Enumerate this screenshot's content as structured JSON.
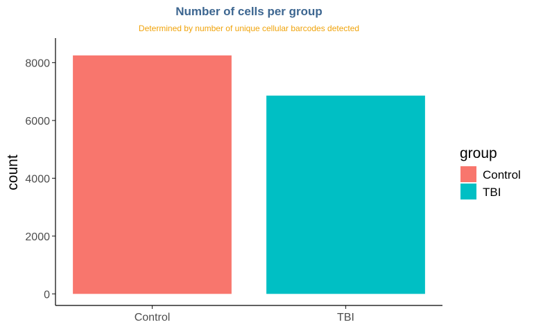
{
  "chart_data": {
    "type": "bar",
    "title": "Number of cells per group",
    "subtitle": "Determined by number of unique cellular barcodes detected",
    "xlabel": "",
    "ylabel": "count",
    "categories": [
      "Control",
      "TBI"
    ],
    "values": [
      8250,
      6860
    ],
    "colors": [
      "#F8766D",
      "#00BFC4"
    ],
    "ylim": [
      -400,
      8850
    ],
    "yticks": [
      0,
      2000,
      4000,
      6000,
      8000
    ],
    "grid": false,
    "legend": {
      "title": "group",
      "position": "right",
      "entries": [
        "Control",
        "TBI"
      ]
    },
    "title_color": "#3d6690",
    "subtitle_color": "#f0a30a"
  }
}
